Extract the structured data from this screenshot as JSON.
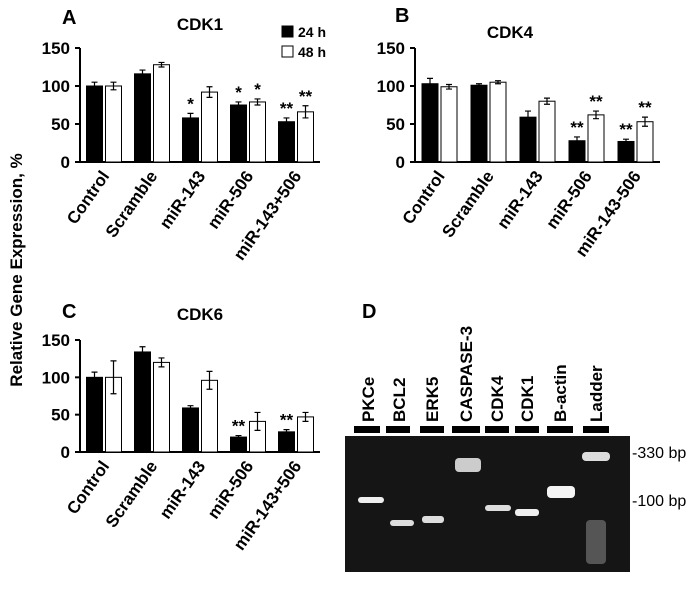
{
  "y_label": "Relative Gene Expression, %",
  "chart_data": [
    {
      "type": "bar",
      "panel": "A",
      "title": "CDK1",
      "categories": [
        "Control",
        "Scramble",
        "miR-143",
        "miR-506",
        "miR-143+506"
      ],
      "series": [
        {
          "name": "24 h",
          "color": "#000000",
          "values": [
            100,
            116,
            58,
            75,
            53
          ],
          "errors": [
            5,
            5,
            6,
            4,
            5
          ],
          "markers": [
            null,
            null,
            "*",
            "*",
            "**"
          ]
        },
        {
          "name": "48 h",
          "color": "#ffffff",
          "values": [
            100,
            128,
            92,
            79,
            66
          ],
          "errors": [
            5,
            3,
            7,
            4,
            8
          ],
          "markers": [
            null,
            null,
            null,
            "*",
            "**"
          ]
        }
      ],
      "ylim": [
        0,
        150
      ],
      "yticks": [
        0,
        50,
        100,
        150
      ],
      "legend": "top-right"
    },
    {
      "type": "bar",
      "panel": "B",
      "title": "CDK4",
      "categories": [
        "Control",
        "Scramble",
        "miR-143",
        "miR-506",
        "miR-143-506"
      ],
      "series": [
        {
          "color": "#000000",
          "values": [
            103,
            101,
            59,
            28,
            27
          ],
          "errors": [
            7,
            2,
            8,
            5,
            3
          ],
          "markers": [
            null,
            null,
            null,
            "**",
            "**"
          ]
        },
        {
          "color": "#ffffff",
          "values": [
            99,
            105,
            80,
            62,
            53
          ],
          "errors": [
            3,
            2,
            4,
            5,
            6
          ],
          "markers": [
            null,
            null,
            null,
            "**",
            "**"
          ]
        }
      ],
      "ylim": [
        0,
        150
      ],
      "yticks": [
        0,
        50,
        100,
        150
      ]
    },
    {
      "type": "bar",
      "panel": "C",
      "title": "CDK6",
      "categories": [
        "Control",
        "Scramble",
        "miR-143",
        "miR-506",
        "miR-143+506"
      ],
      "series": [
        {
          "color": "#000000",
          "values": [
            100,
            134,
            59,
            20,
            27
          ],
          "errors": [
            7,
            7,
            3,
            2,
            3
          ],
          "markers": [
            null,
            null,
            null,
            "**",
            "**"
          ]
        },
        {
          "color": "#ffffff",
          "values": [
            100,
            120,
            96,
            41,
            47
          ],
          "errors": [
            22,
            6,
            12,
            12,
            6
          ],
          "markers": [
            null,
            null,
            null,
            null,
            null
          ]
        }
      ],
      "ylim": [
        0,
        150
      ],
      "yticks": [
        0,
        50,
        100,
        150
      ]
    }
  ],
  "gel": {
    "panel": "D",
    "lanes": [
      "PKCe",
      "BCL2",
      "ERK5",
      "CASPASE-3",
      "CDK4",
      "CDK1",
      "B-actin",
      "Ladder"
    ],
    "size_labels": [
      "-330 bp",
      "-100 bp"
    ]
  }
}
